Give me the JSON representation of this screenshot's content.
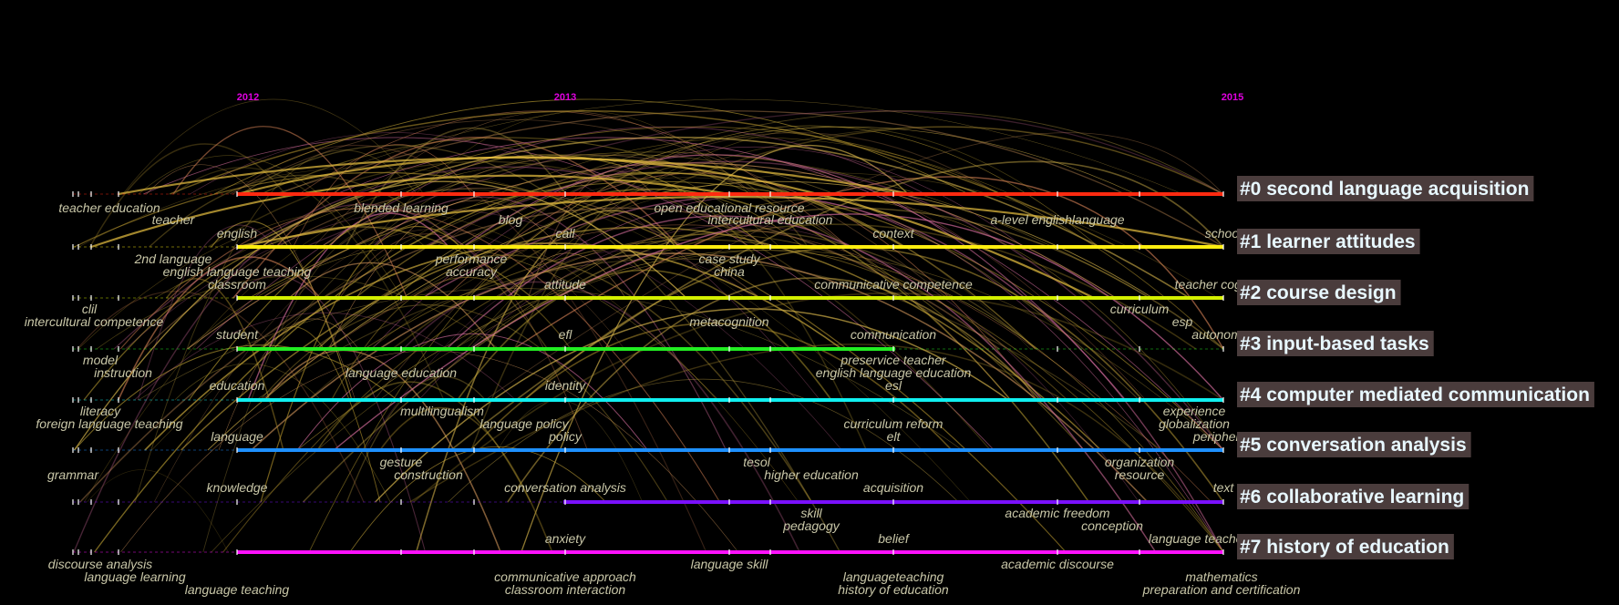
{
  "years": [
    "2012",
    "2013",
    "2015"
  ],
  "clusters": [
    {
      "id": "#0",
      "name": "second language acquisition",
      "label": "#0 second language acquisition",
      "color": "#ff2a10"
    },
    {
      "id": "#1",
      "name": "learner attitudes",
      "label": "#1 learner attitudes",
      "color": "#ffee10"
    },
    {
      "id": "#2",
      "name": "course design",
      "label": "#2 course design",
      "color": "#d4f000"
    },
    {
      "id": "#3",
      "name": "input-based tasks",
      "label": "#3 input-based tasks",
      "color": "#22ee22"
    },
    {
      "id": "#4",
      "name": "computer mediated communication",
      "label": "#4 computer mediated communication",
      "color": "#10f0f0"
    },
    {
      "id": "#5",
      "name": "conversation analysis",
      "label": "#5 conversation analysis",
      "color": "#1e90ff"
    },
    {
      "id": "#6",
      "name": "collaborative learning",
      "label": "#6 collaborative learning",
      "color": "#7a10ff"
    },
    {
      "id": "#7",
      "name": "history of education",
      "label": "#7 history of education",
      "color": "#ff10ff"
    }
  ],
  "keywords": [
    "teacher education",
    "teacher",
    "blended learning",
    "blog",
    "open educational resource",
    "intercultural education",
    "a-level englishlanguage",
    "english",
    "call",
    "context",
    "school",
    "2nd language",
    "performance",
    "case study",
    "english language teaching",
    "accuracy",
    "china",
    "classroom",
    "attitude",
    "communicative competence",
    "teacher cognition",
    "clil",
    "curriculum",
    "intercultural competence",
    "metacognition",
    "esp",
    "student",
    "efl",
    "communication",
    "autonomy",
    "model",
    "preservice teacher",
    "instruction",
    "language education",
    "english language education",
    "education",
    "identity",
    "esl",
    "literacy",
    "experience",
    "multilingualism",
    "foreign language teaching",
    "language policy",
    "curriculum reform",
    "globalization",
    "language",
    "policy",
    "elt",
    "periphery",
    "gesture",
    "tesol",
    "organization",
    "grammar",
    "construction",
    "higher education",
    "resource",
    "knowledge",
    "conversation analysis",
    "acquisition",
    "text",
    "academic freedom",
    "skill",
    "conception",
    "pedagogy",
    "anxiety",
    "belief",
    "language teacher cognition",
    "discourse analysis",
    "language skill",
    "academic discourse",
    "language learning",
    "communicative approach",
    "languageteaching",
    "mathematics",
    "language teaching",
    "classroom interaction",
    "history of education",
    "preparation and certification"
  ]
}
